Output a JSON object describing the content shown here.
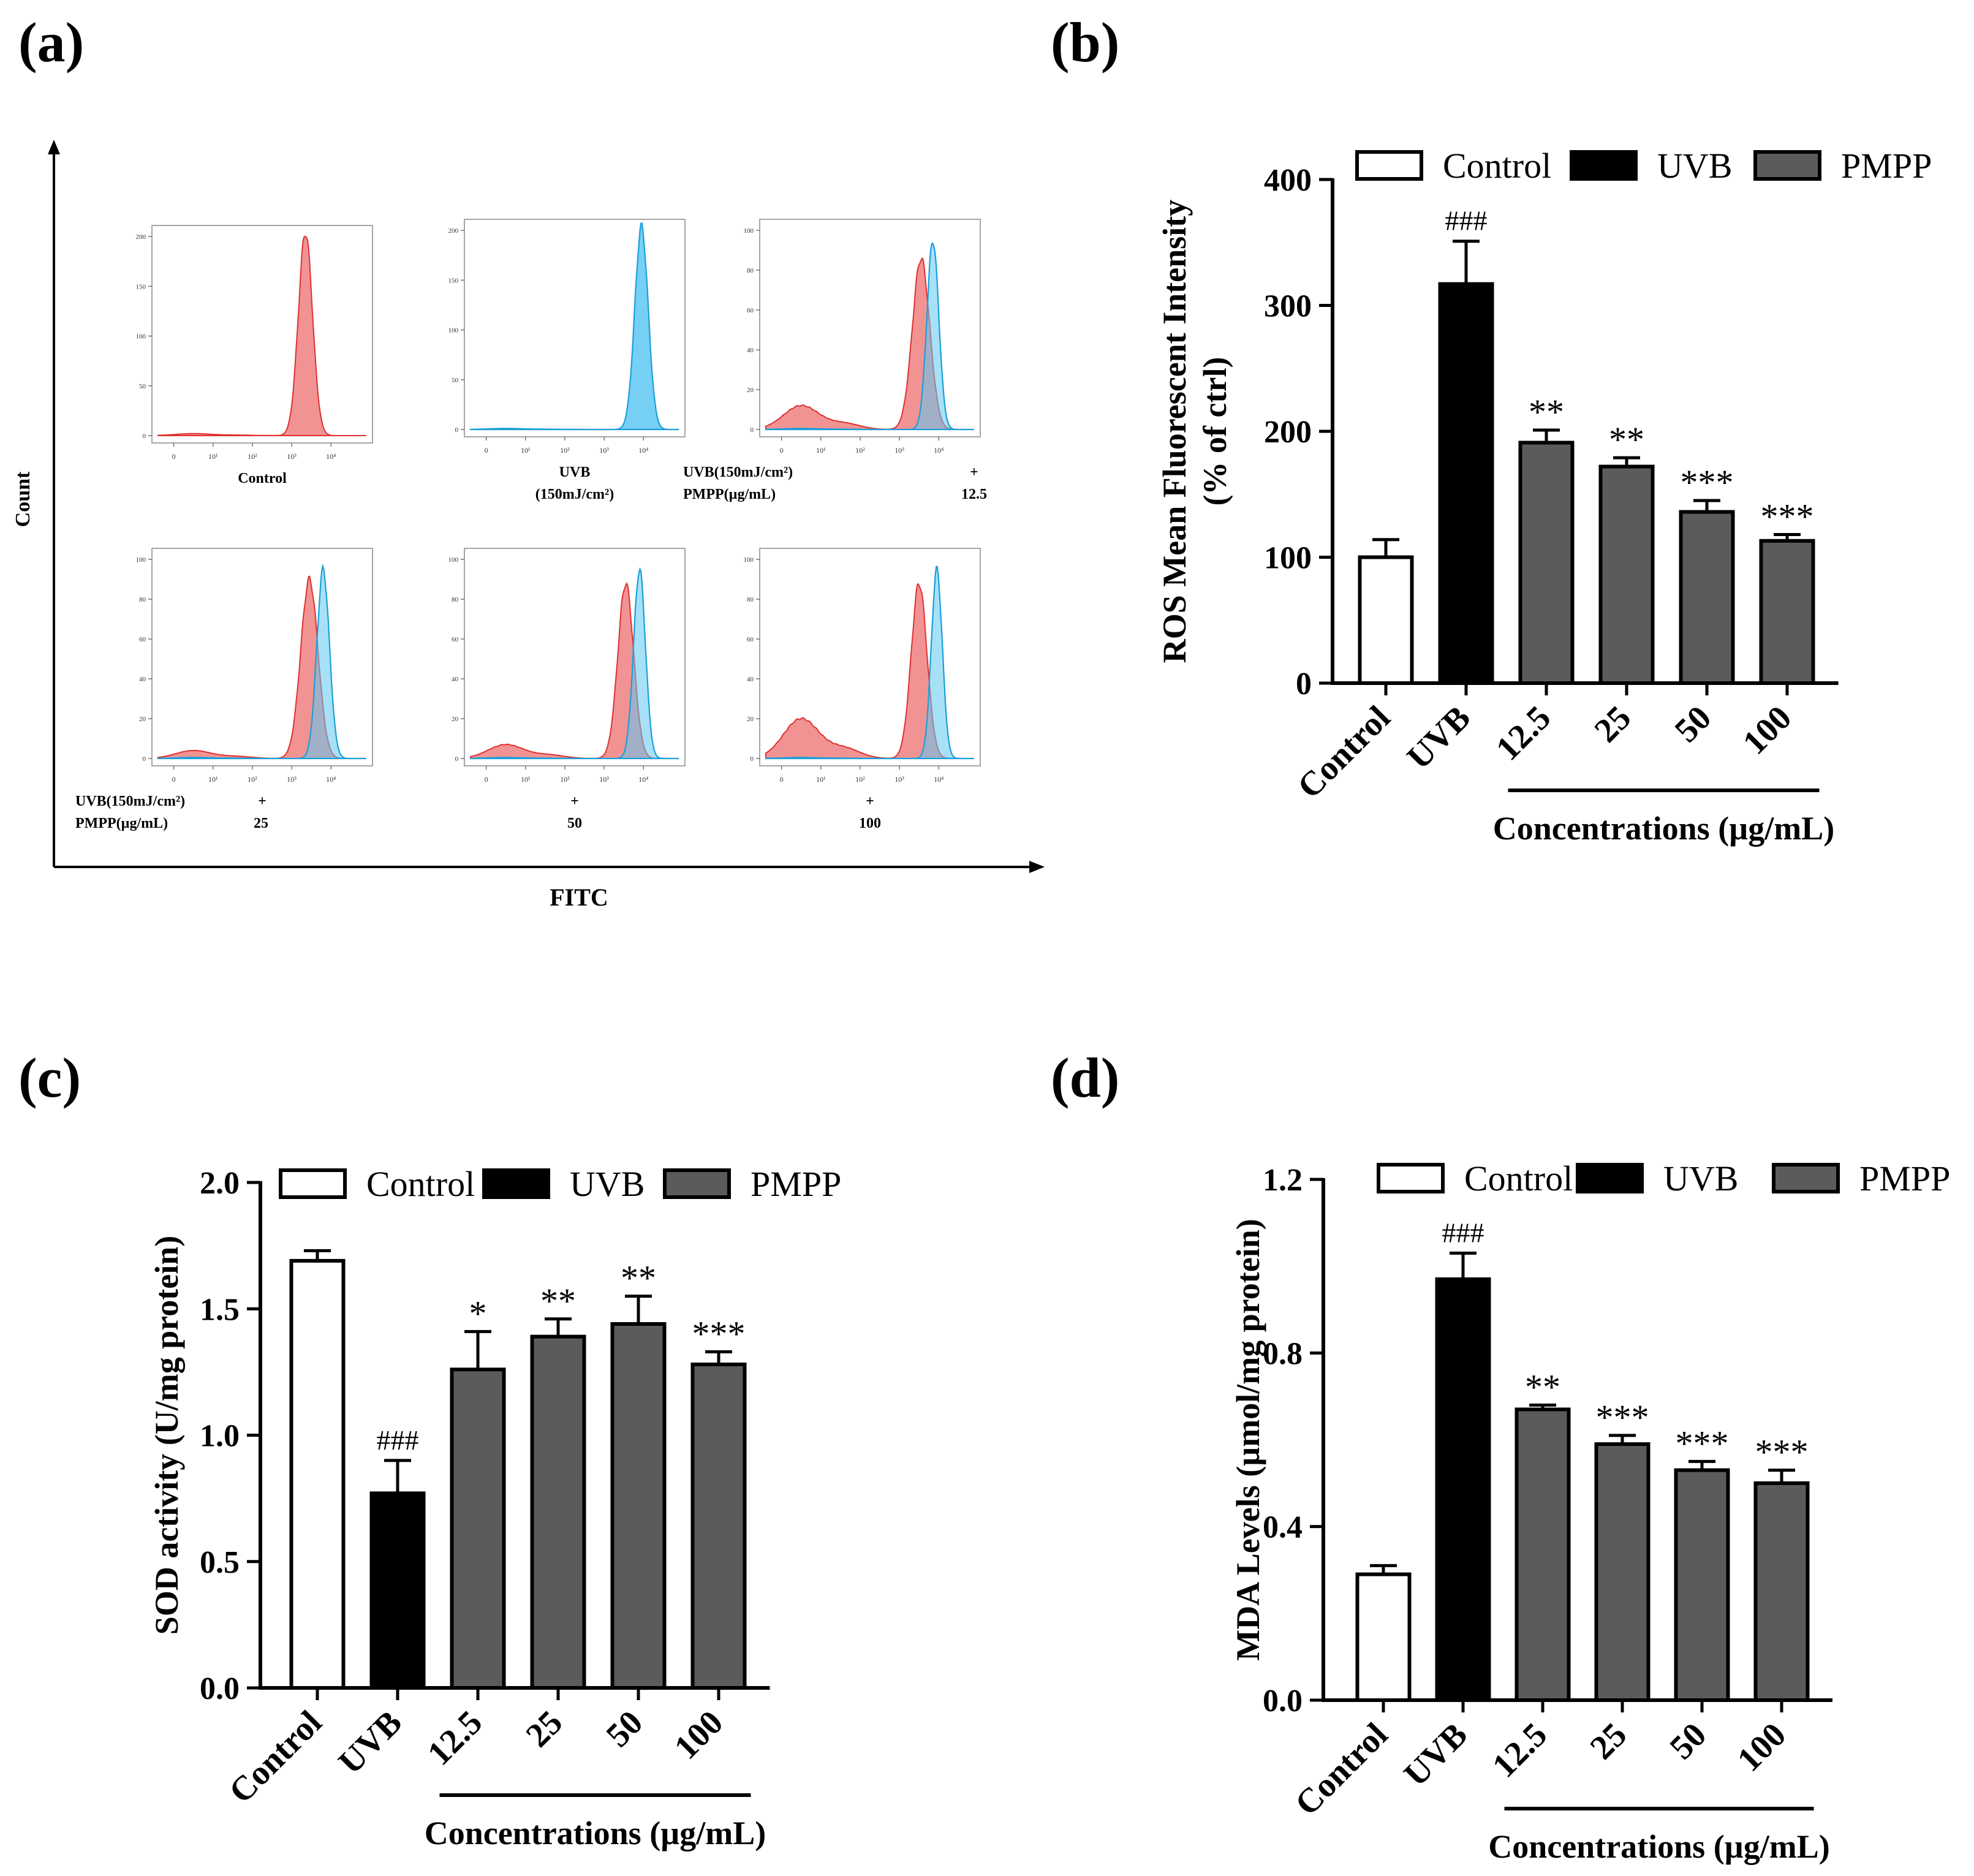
{
  "panels": {
    "a": {
      "label": "(a)",
      "y_axis_label": "Count",
      "x_axis_label": "FITC",
      "histograms": [
        {
          "id": "control",
          "ymax": 200,
          "yticks": [
            "200",
            "150",
            "100",
            "50",
            "0"
          ],
          "red": {
            "peak": 3.35,
            "width": 0.18,
            "height": 1.02
          },
          "blue": null,
          "red_shoulder": null,
          "caption": {
            "c1": "",
            "c2": "Control",
            "c3": "",
            "c4": "",
            "c5": ""
          }
        },
        {
          "id": "uvb",
          "ymax": 200,
          "yticks": [
            "200",
            "150",
            "100",
            "50",
            "0"
          ],
          "red": null,
          "blue": {
            "peak": 3.95,
            "width": 0.17,
            "height": 1.02
          },
          "caption": {
            "c1": "",
            "c2": "UVB",
            "c3": "(150mJ/cm²)",
            "c4": "",
            "c5": ""
          }
        },
        {
          "id": "pmpp-12.5",
          "ymax": 100,
          "yticks": [
            "100",
            "80",
            "60",
            "40",
            "20",
            "0"
          ],
          "red": {
            "peak": 3.55,
            "width": 0.22,
            "height": 0.86
          },
          "blue": {
            "peak": 3.85,
            "width": 0.15,
            "height": 0.95
          },
          "red_low": 0.12,
          "caption": {
            "c1": "UVB(150mJ/cm²)",
            "c2": "+",
            "c3": "PMPP(µg/mL)",
            "c4": "12.5",
            "c5": ""
          }
        },
        {
          "id": "pmpp-25",
          "ymax": 100,
          "yticks": [
            "100",
            "80",
            "60",
            "40",
            "20",
            "0"
          ],
          "red": {
            "peak": 3.45,
            "width": 0.22,
            "height": 0.9
          },
          "blue": {
            "peak": 3.8,
            "width": 0.16,
            "height": 0.95
          },
          "red_low": 0.04,
          "caption": {
            "c1": "UVB(150mJ/cm²)",
            "c2": "+",
            "c3": "PMPP(µg/mL)",
            "c4": "25",
            "c5": ""
          }
        },
        {
          "id": "pmpp-50",
          "ymax": 100,
          "yticks": [
            "100",
            "80",
            "60",
            "40",
            "20",
            "0"
          ],
          "red": {
            "peak": 3.55,
            "width": 0.2,
            "height": 0.88
          },
          "blue": {
            "peak": 3.9,
            "width": 0.15,
            "height": 0.95
          },
          "red_low": 0.07,
          "caption": {
            "c1": "",
            "c2": "+",
            "c3": "",
            "c4": "50",
            "c5": ""
          }
        },
        {
          "id": "pmpp-100",
          "ymax": 100,
          "yticks": [
            "100",
            "80",
            "60",
            "40",
            "20",
            "0"
          ],
          "red": {
            "peak": 3.5,
            "width": 0.2,
            "height": 0.88
          },
          "blue": {
            "peak": 3.95,
            "width": 0.14,
            "height": 0.95
          },
          "red_low": 0.2,
          "caption": {
            "c1": "",
            "c2": "+",
            "c3": "",
            "c4": "100",
            "c5": ""
          }
        }
      ],
      "xticks": [
        "0",
        "10¹",
        "10²",
        "10³",
        "10⁴"
      ]
    },
    "b": {
      "label": "(b)"
    },
    "c": {
      "label": "(c)"
    },
    "d": {
      "label": "(d)"
    }
  },
  "chart_data": [
    {
      "id": "b",
      "type": "bar",
      "categories": [
        "Control",
        "UVB",
        "12.5",
        "25",
        "50",
        "100"
      ],
      "values": [
        100,
        317,
        191,
        172,
        136,
        113
      ],
      "errors": [
        14,
        34,
        10,
        7,
        9,
        5
      ],
      "groups": [
        "Control",
        "UVB",
        "PMPP",
        "PMPP",
        "PMPP",
        "PMPP"
      ],
      "annotations": [
        "",
        "###",
        "**",
        "**",
        "***",
        "***"
      ],
      "ylabel_line1": "ROS Mean Fluorescent Intensity",
      "ylabel_line2": "(% of ctrl)",
      "xlabel": "Concentrations (µg/mL)",
      "ylim": [
        0,
        400
      ],
      "yticks": [
        "0",
        "100",
        "200",
        "300",
        "400"
      ],
      "legend": [
        "Control",
        "UVB",
        "PMPP"
      ]
    },
    {
      "id": "c",
      "type": "bar",
      "categories": [
        "Control",
        "UVB",
        "12.5",
        "25",
        "50",
        "100"
      ],
      "values": [
        1.69,
        0.77,
        1.26,
        1.39,
        1.44,
        1.28
      ],
      "errors": [
        0.04,
        0.13,
        0.15,
        0.07,
        0.11,
        0.05
      ],
      "groups": [
        "Control",
        "UVB",
        "PMPP",
        "PMPP",
        "PMPP",
        "PMPP"
      ],
      "annotations": [
        "",
        "###",
        "*",
        "**",
        "**",
        "***"
      ],
      "ylabel_line1": "SOD activity (U/mg protein)",
      "ylabel_line2": "",
      "xlabel": "Concentrations (µg/mL)",
      "ylim": [
        0,
        2.0
      ],
      "yticks": [
        "0.0",
        "0.5",
        "1.0",
        "1.5",
        "2.0"
      ],
      "legend": [
        "Control",
        "UVB",
        "PMPP"
      ]
    },
    {
      "id": "d",
      "type": "bar",
      "categories": [
        "Control",
        "UVB",
        "12.5",
        "25",
        "50",
        "100"
      ],
      "values": [
        0.29,
        0.97,
        0.67,
        0.59,
        0.53,
        0.5
      ],
      "errors": [
        0.02,
        0.06,
        0.01,
        0.02,
        0.02,
        0.03
      ],
      "groups": [
        "Control",
        "UVB",
        "PMPP",
        "PMPP",
        "PMPP",
        "PMPP"
      ],
      "annotations": [
        "",
        "###",
        "**",
        "***",
        "***",
        "***"
      ],
      "ylabel_line1": "MDA Levels (µmol/mg protein)",
      "ylabel_line2": "",
      "xlabel": "Concentrations (µg/mL)",
      "ylim": [
        0,
        1.2
      ],
      "yticks": [
        "0.0",
        "0.4",
        "0.8",
        "1.2"
      ],
      "legend": [
        "Control",
        "UVB",
        "PMPP"
      ]
    }
  ],
  "colors": {
    "control_fill": "#ffffff",
    "uvb_fill": "#000000",
    "pmpp_fill": "#5b5b5b",
    "hist_red": "#f08080",
    "hist_red_stroke": "#e03030",
    "hist_blue": "#5ec8f2",
    "hist_blue_stroke": "#1c9fd8",
    "overlap": "#8a6fa8"
  }
}
